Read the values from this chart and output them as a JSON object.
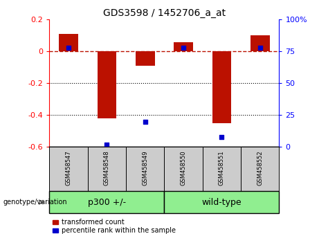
{
  "title": "GDS3598 / 1452706_a_at",
  "samples": [
    "GSM458547",
    "GSM458548",
    "GSM458549",
    "GSM458550",
    "GSM458551",
    "GSM458552"
  ],
  "transformed_counts": [
    0.11,
    -0.42,
    -0.09,
    0.06,
    -0.45,
    0.1
  ],
  "percentile_ranks": [
    78,
    2,
    20,
    78,
    8,
    78
  ],
  "group_label": "genotype/variation",
  "group_ranges": [
    {
      "label": "p300 +/-",
      "start": 0,
      "end": 2
    },
    {
      "label": "wild-type",
      "start": 3,
      "end": 5
    }
  ],
  "ylim_left": [
    -0.6,
    0.2
  ],
  "ylim_right": [
    0,
    100
  ],
  "yticks_left": [
    0.2,
    0.0,
    -0.2,
    -0.4,
    -0.6
  ],
  "yticks_left_labels": [
    "0.2",
    "0",
    "-0.2",
    "-0.4",
    "-0.6"
  ],
  "yticks_right": [
    100,
    75,
    50,
    25,
    0
  ],
  "yticks_right_labels": [
    "100%",
    "75",
    "50",
    "25",
    "0"
  ],
  "hline_y": 0.0,
  "dotted_lines": [
    -0.2,
    -0.4
  ],
  "bar_color": "#bb1100",
  "dot_color": "#0000cc",
  "bar_width": 0.5,
  "group_color": "#90ee90",
  "sample_box_color": "#cccccc",
  "legend_items": [
    {
      "label": "transformed count",
      "color": "#bb1100"
    },
    {
      "label": "percentile rank within the sample",
      "color": "#0000cc"
    }
  ]
}
